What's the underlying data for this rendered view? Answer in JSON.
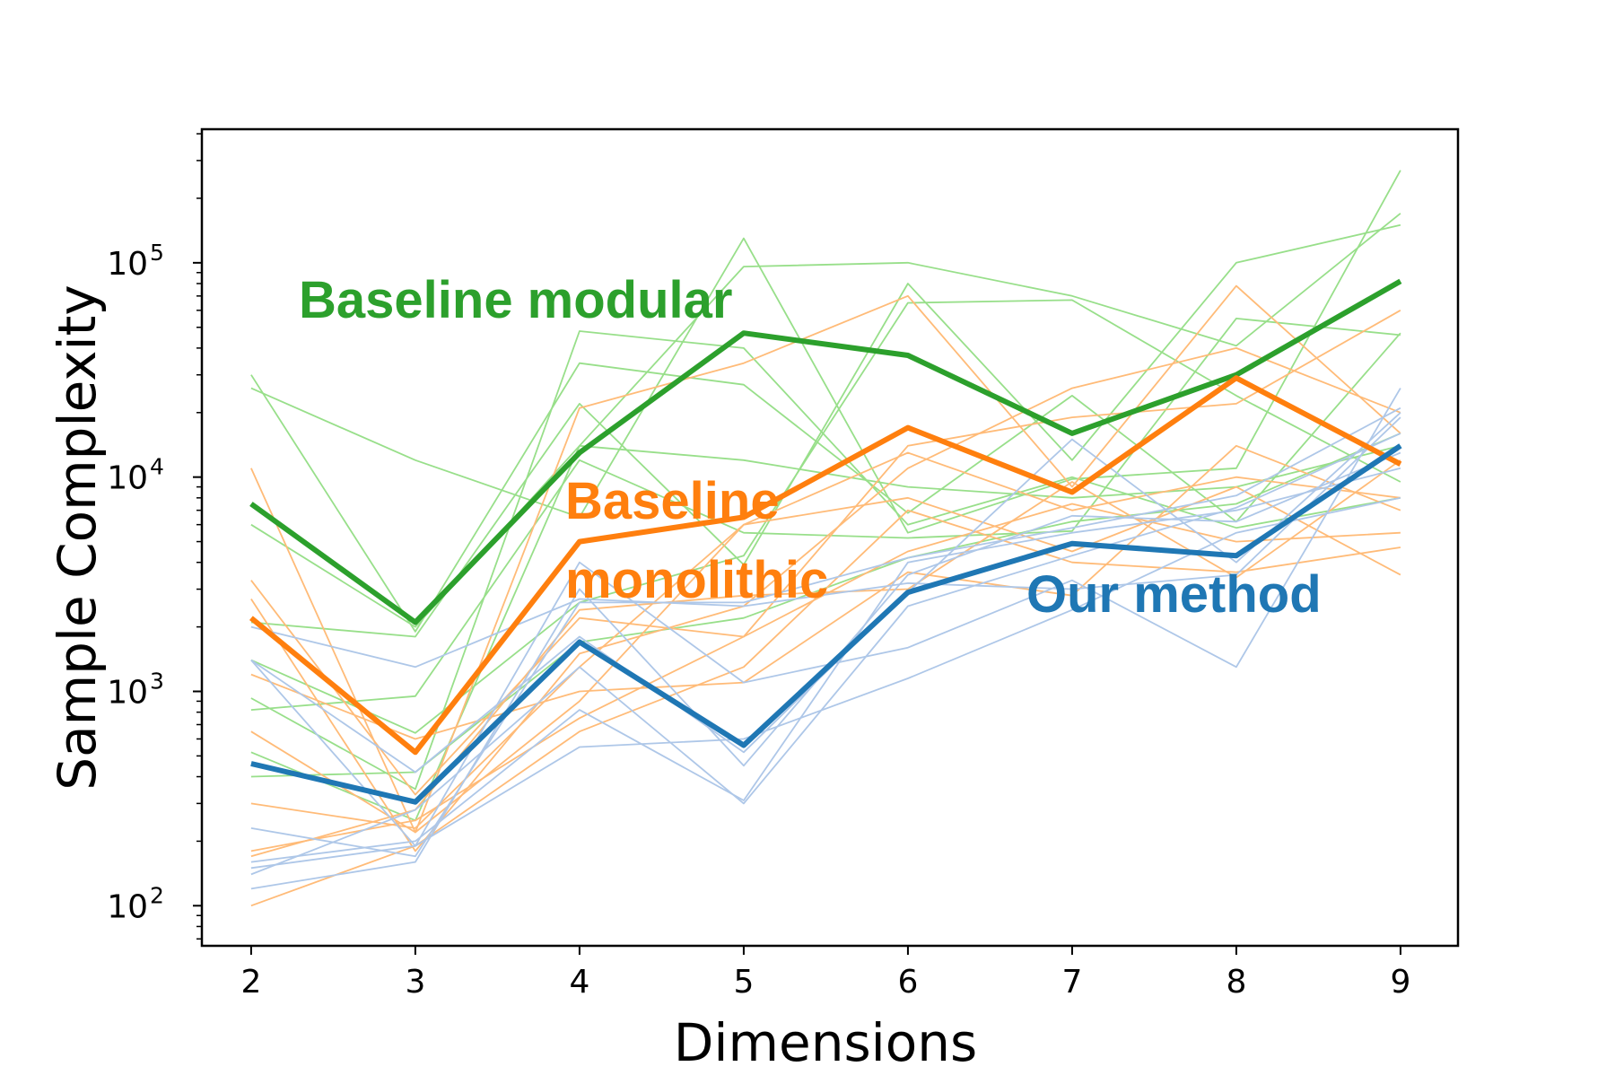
{
  "chart_data": {
    "type": "line",
    "xlabel": "Dimensions",
    "ylabel": "Sample Complexity",
    "x": [
      2,
      3,
      4,
      5,
      6,
      7,
      8,
      9
    ],
    "xlim": [
      1.7,
      9.35
    ],
    "ylim": [
      65,
      420000
    ],
    "yscale": "log",
    "y_ticks": [
      {
        "base": "10",
        "exp": "2",
        "value": 100
      },
      {
        "base": "10",
        "exp": "3",
        "value": 1000
      },
      {
        "base": "10",
        "exp": "4",
        "value": 10000
      },
      {
        "base": "10",
        "exp": "5",
        "value": 100000
      }
    ],
    "grid": false,
    "colors": {
      "green": "#2ca02c",
      "green_light": "#98df8a",
      "orange": "#ff7f0e",
      "orange_light": "#ffbb78",
      "blue": "#1f77b4",
      "blue_light": "#aec7e8"
    },
    "series": [
      {
        "name": "Baseline modular",
        "color": "#2ca02c",
        "values": [
          7500,
          2100,
          13000,
          47000,
          37000,
          16000,
          30000,
          82000
        ]
      },
      {
        "name": "Baseline monolithic",
        "color": "#ff7f0e",
        "values": [
          2200,
          520,
          5000,
          6500,
          17000,
          8500,
          29000,
          11500
        ]
      },
      {
        "name": "Our method",
        "color": "#1f77b4",
        "values": [
          460,
          305,
          1700,
          560,
          2900,
          4900,
          4300,
          14000
        ]
      }
    ],
    "trials": {
      "green": [
        [
          30000,
          1900,
          34000,
          27000,
          6800,
          24000,
          6200,
          47000
        ],
        [
          26000,
          12000,
          6500,
          130000,
          5500,
          9800,
          11000,
          270000
        ],
        [
          6000,
          2000,
          14000,
          96000,
          100000,
          70000,
          41000,
          170000
        ],
        [
          2100,
          1800,
          22000,
          3900,
          80000,
          12000,
          100000,
          150000
        ],
        [
          820,
          950,
          12000,
          5500,
          5200,
          5600,
          55000,
          46000
        ],
        [
          1400,
          640,
          2600,
          4300,
          65000,
          67000,
          24000,
          9500
        ],
        [
          400,
          420,
          1700,
          2200,
          4200,
          6200,
          7500,
          16000
        ],
        [
          930,
          350,
          48000,
          40000,
          6000,
          10000,
          5800,
          8000
        ],
        [
          520,
          250,
          14000,
          12000,
          9000,
          8000,
          9000,
          14000
        ]
      ],
      "orange": [
        [
          11000,
          220,
          21000,
          34000,
          70000,
          9000,
          78000,
          16000
        ],
        [
          3300,
          330,
          2200,
          1800,
          14000,
          19000,
          22000,
          60000
        ],
        [
          2700,
          180,
          1500,
          2500,
          11000,
          26000,
          40000,
          20000
        ],
        [
          1200,
          600,
          1000,
          1100,
          3600,
          2800,
          14000,
          7000
        ],
        [
          650,
          220,
          900,
          6000,
          8000,
          4500,
          9000,
          3500
        ],
        [
          180,
          250,
          750,
          1800,
          4500,
          7500,
          5000,
          5500
        ],
        [
          100,
          190,
          650,
          1300,
          7000,
          4000,
          3600,
          4700
        ],
        [
          300,
          230,
          1300,
          6000,
          13000,
          7000,
          10000,
          8000
        ],
        [
          170,
          280,
          2400,
          2800,
          3000,
          9500,
          3400,
          12000
        ]
      ],
      "blue": [
        [
          1400,
          190,
          4000,
          1100,
          1600,
          3300,
          1300,
          26000
        ],
        [
          2000,
          1300,
          2700,
          2500,
          3200,
          3000,
          3500,
          19000
        ],
        [
          230,
          170,
          2600,
          2600,
          4200,
          5800,
          8200,
          21000
        ],
        [
          150,
          190,
          550,
          600,
          1150,
          2400,
          5500,
          8000
        ],
        [
          120,
          160,
          3000,
          450,
          3500,
          6600,
          6200,
          13000
        ],
        [
          160,
          200,
          820,
          310,
          4000,
          5500,
          7000,
          11000
        ],
        [
          1400,
          420,
          1800,
          520,
          2900,
          15000,
          4000,
          20000
        ],
        [
          140,
          280,
          1300,
          300,
          2500,
          4300,
          7200,
          16000
        ]
      ]
    }
  }
}
